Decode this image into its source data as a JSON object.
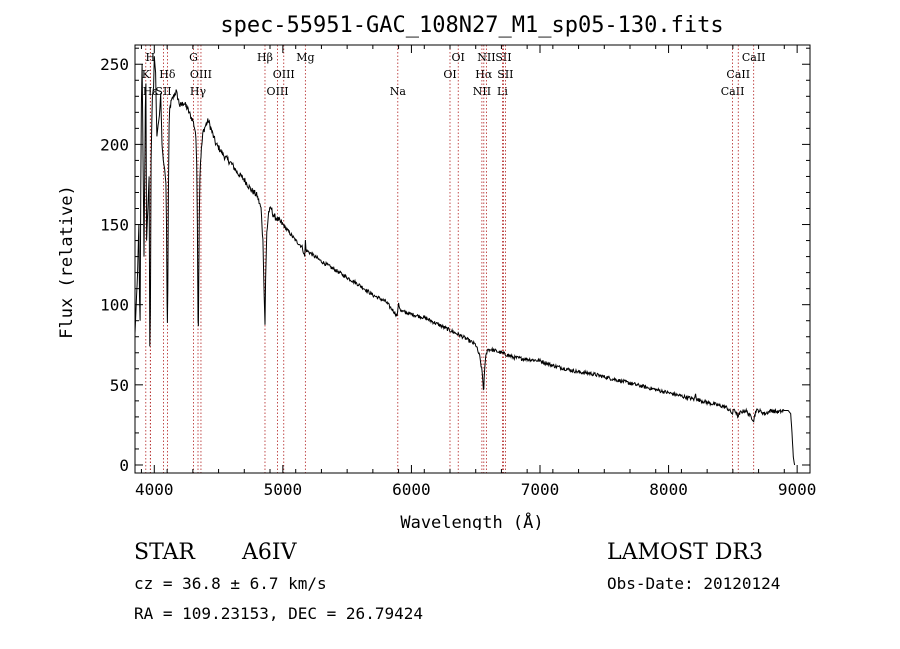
{
  "chart_data": {
    "type": "line",
    "title": "spec-55951-GAC_108N27_M1_sp05-130.fits",
    "xlabel": "Wavelength (Å)",
    "ylabel": "Flux (relative)",
    "xlim": [
      3850,
      9100
    ],
    "ylim": [
      -5,
      262
    ],
    "x_ticks": [
      4000,
      5000,
      6000,
      7000,
      8000,
      9000
    ],
    "y_ticks": [
      0,
      50,
      100,
      150,
      200,
      250
    ],
    "grid": false,
    "series": [
      {
        "name": "flux",
        "x": [
          3850,
          3870,
          3880,
          3885,
          3890,
          3895,
          3900,
          3905,
          3910,
          3920,
          3930,
          3935,
          3940,
          3950,
          3960,
          3965,
          3970,
          3975,
          3985,
          3995,
          4000,
          4010,
          4020,
          4030,
          4040,
          4050,
          4060,
          4070,
          4080,
          4090,
          4095,
          4100,
          4102,
          4105,
          4110,
          4115,
          4120,
          4130,
          4150,
          4170,
          4200,
          4230,
          4260,
          4280,
          4300,
          4320,
          4330,
          4335,
          4340,
          4343,
          4346,
          4350,
          4355,
          4360,
          4370,
          4380,
          4400,
          4420,
          4440,
          4460,
          4480,
          4500,
          4550,
          4600,
          4650,
          4700,
          4750,
          4800,
          4830,
          4845,
          4855,
          4861,
          4866,
          4875,
          4890,
          4910,
          4930,
          4950,
          5000,
          5050,
          5100,
          5150,
          5170,
          5175,
          5180,
          5200,
          5300,
          5400,
          5500,
          5600,
          5700,
          5800,
          5890,
          5895,
          5900,
          5920,
          6000,
          6100,
          6200,
          6300,
          6400,
          6500,
          6530,
          6550,
          6560,
          6563,
          6566,
          6575,
          6590,
          6620,
          6700,
          6800,
          6900,
          7000,
          7100,
          7200,
          7300,
          7400,
          7500,
          7600,
          7700,
          7800,
          7900,
          8000,
          8100,
          8200,
          8210,
          8220,
          8300,
          8400,
          8450,
          8498,
          8510,
          8542,
          8560,
          8600,
          8662,
          8680,
          8700,
          8750,
          8800,
          8850,
          8900,
          8930,
          8950,
          8960,
          8970,
          8980
        ],
        "y": [
          82,
          120,
          150,
          105,
          90,
          175,
          225,
          250,
          215,
          130,
          222,
          238,
          140,
          160,
          180,
          74,
          95,
          190,
          230,
          236,
          255,
          245,
          205,
          212,
          218,
          232,
          200,
          190,
          185,
          176,
          150,
          100,
          88,
          110,
          168,
          210,
          222,
          226,
          230,
          233,
          224,
          226,
          222,
          218,
          215,
          208,
          190,
          150,
          92,
          86,
          120,
          155,
          180,
          190,
          200,
          208,
          212,
          215,
          210,
          205,
          200,
          198,
          192,
          188,
          182,
          178,
          172,
          168,
          160,
          140,
          105,
          88,
          115,
          145,
          158,
          160,
          155,
          154,
          150,
          145,
          140,
          136,
          130,
          140,
          134,
          133,
          127,
          122,
          117,
          112,
          106,
          102,
          93,
          98,
          100,
          96,
          94,
          92,
          88,
          84,
          80,
          75,
          68,
          58,
          48,
          47,
          54,
          66,
          72,
          72,
          70,
          67,
          66,
          65,
          62,
          60,
          58,
          57,
          55,
          53,
          51,
          49,
          47,
          45,
          43,
          41,
          44,
          41,
          39,
          37,
          36,
          32,
          35,
          30,
          33,
          34,
          28,
          34,
          34,
          32,
          34,
          33,
          34,
          34,
          32,
          20,
          5,
          0
        ]
      }
    ],
    "line_ids": [
      {
        "label": "Hδ",
        "wl": 4102,
        "row": 1
      },
      {
        "label": "Hγ",
        "wl": 4340,
        "row": 2
      },
      {
        "label": "Hβ",
        "wl": 4861,
        "row": 0
      },
      {
        "label": "Hα",
        "wl": 6563,
        "row": 1
      },
      {
        "label": "K",
        "wl": 3934,
        "row": 1
      },
      {
        "label": "H",
        "wl": 3969,
        "row": 0
      },
      {
        "label": "Hε",
        "wl": 3970,
        "row": 2
      },
      {
        "label": "SII",
        "wl": 4072,
        "row": 2
      },
      {
        "label": "G",
        "wl": 4305,
        "row": 0
      },
      {
        "label": "OIII",
        "wl": 4363,
        "row": 1
      },
      {
        "label": "OIII",
        "wl": 4959,
        "row": 2
      },
      {
        "label": "OIII",
        "wl": 5007,
        "row": 1
      },
      {
        "label": "Mg",
        "wl": 5175,
        "row": 0
      },
      {
        "label": "Na",
        "wl": 5894,
        "row": 2
      },
      {
        "label": "OI",
        "wl": 6300,
        "row": 1
      },
      {
        "label": "OI",
        "wl": 6364,
        "row": 0
      },
      {
        "label": "NII",
        "wl": 6548,
        "row": 2
      },
      {
        "label": "NII",
        "wl": 6583,
        "row": 0
      },
      {
        "label": "Li",
        "wl": 6708,
        "row": 2
      },
      {
        "label": "SII",
        "wl": 6716,
        "row": 0
      },
      {
        "label": "SII",
        "wl": 6731,
        "row": 1
      },
      {
        "label": "CaII",
        "wl": 8498,
        "row": 2
      },
      {
        "label": "CaII",
        "wl": 8542,
        "row": 1
      },
      {
        "label": "CaII",
        "wl": 8662,
        "row": 0
      }
    ]
  },
  "info": {
    "class_label": "STAR",
    "subclass": "A6IV",
    "survey": "LAMOST DR3",
    "cz": "cz = 36.8 ± 6.7 km/s",
    "obs_date": "Obs-Date: 20120124",
    "coords": "RA = 109.23153, DEC =  26.79424"
  }
}
